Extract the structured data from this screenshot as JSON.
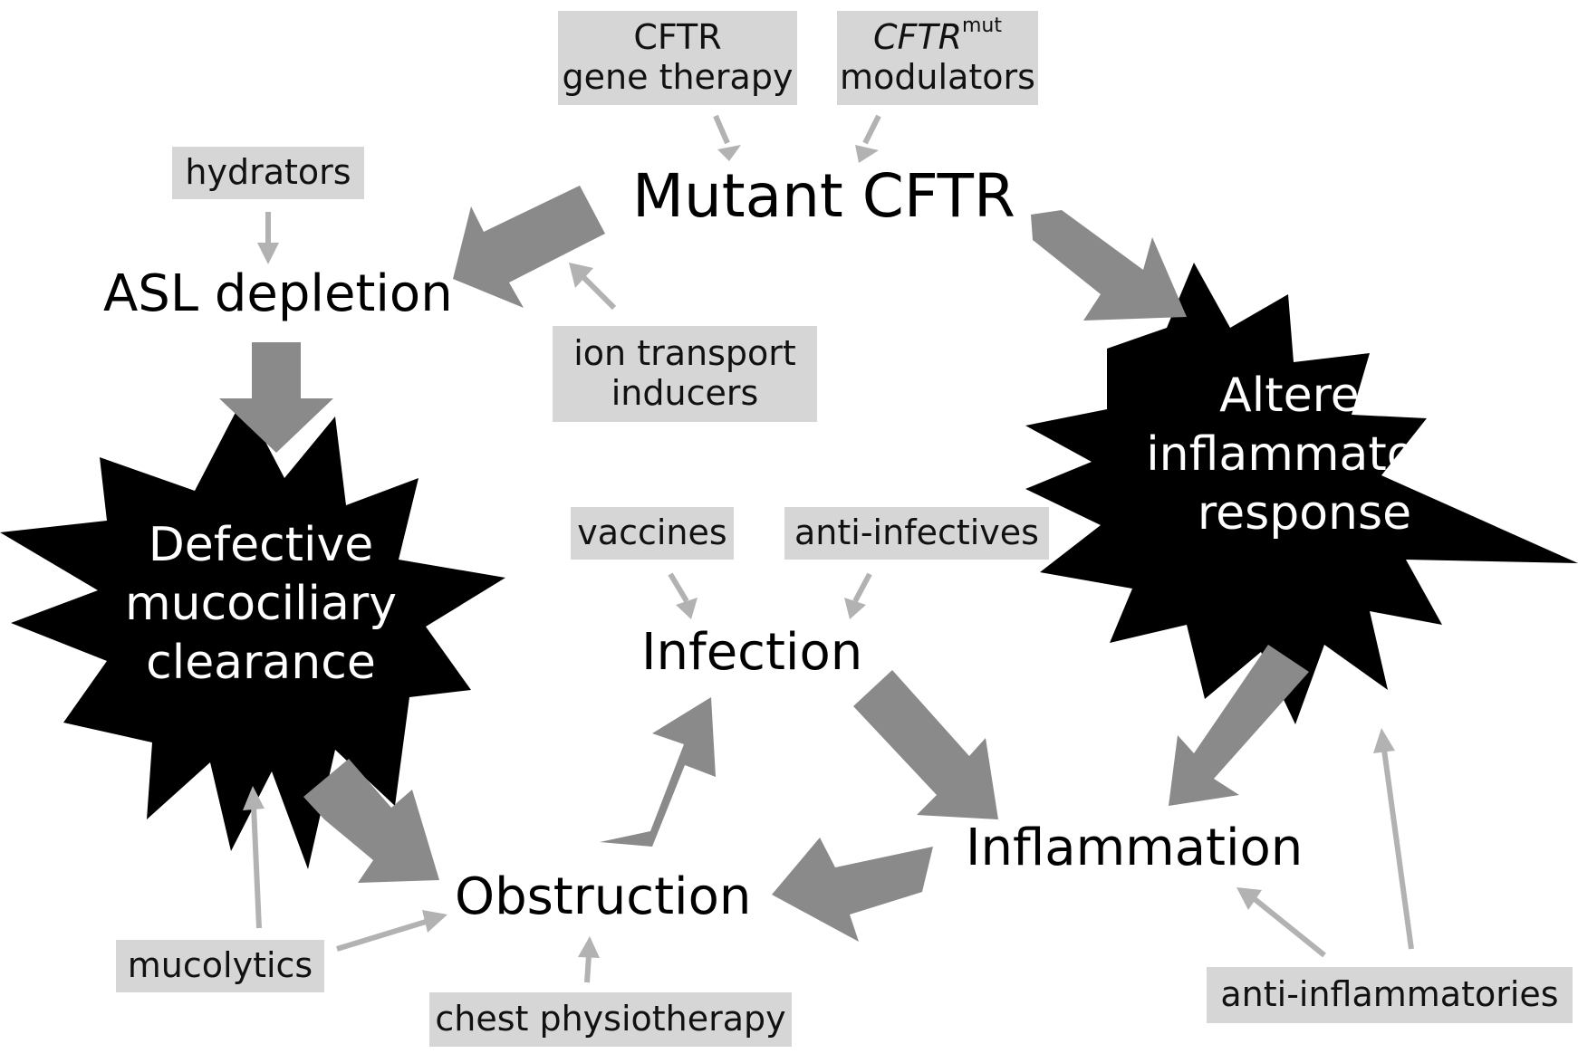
{
  "nodes": {
    "mutant_cftr": "Mutant CFTR",
    "asl_depletion": "ASL depletion",
    "defective_mcc": [
      "Defective",
      "mucociliary",
      "clearance"
    ],
    "altered_inflammatory": [
      "Altered",
      "inflammatory",
      "response"
    ],
    "infection": "Infection",
    "inflammation": "Inflammation",
    "obstruction": "Obstruction"
  },
  "therapies": {
    "cftr_gene_therapy": [
      "CFTR",
      "gene therapy"
    ],
    "cftr_mut_modulators": {
      "gene": "CFTR",
      "superscript": "mut",
      "line2": "modulators"
    },
    "hydrators": "hydrators",
    "ion_transport_inducers": [
      "ion transport",
      "inducers"
    ],
    "vaccines": "vaccines",
    "anti_infectives": "anti-infectives",
    "mucolytics": "mucolytics",
    "chest_physiotherapy": "chest physiotherapy",
    "anti_inflammatories": "anti-inflammatories"
  },
  "colors": {
    "big_arrow": "#8a8a8a",
    "small_arrow": "#b2b2b2",
    "therapy_box": "#d6d6d6",
    "starburst": "#000000",
    "starburst_text": "#ffffff"
  }
}
